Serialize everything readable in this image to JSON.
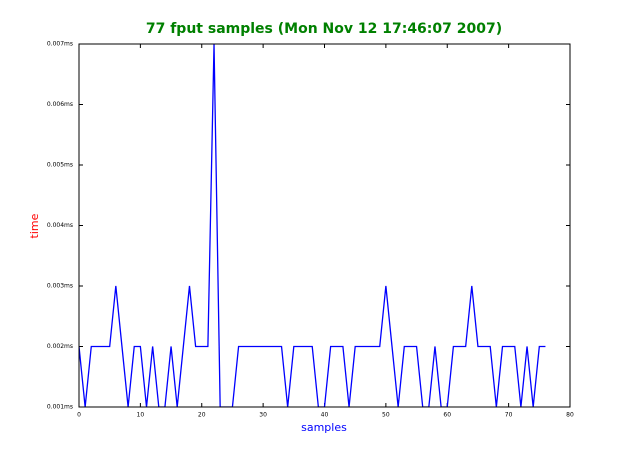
{
  "chart_data": {
    "type": "line",
    "title": "77 fput samples (Mon Nov 12 17:46:07 2007)",
    "x_label": "samples",
    "y_label": "time",
    "x": [
      0,
      1,
      2,
      3,
      4,
      5,
      6,
      7,
      8,
      9,
      10,
      11,
      12,
      13,
      14,
      15,
      16,
      17,
      18,
      19,
      20,
      21,
      22,
      23,
      24,
      25,
      26,
      27,
      28,
      29,
      30,
      31,
      32,
      33,
      34,
      35,
      36,
      37,
      38,
      39,
      40,
      41,
      42,
      43,
      44,
      45,
      46,
      47,
      48,
      49,
      50,
      51,
      52,
      53,
      54,
      55,
      56,
      57,
      58,
      59,
      60,
      61,
      62,
      63,
      64,
      65,
      66,
      67,
      68,
      69,
      70,
      71,
      72,
      73,
      74,
      75,
      76
    ],
    "series": [
      {
        "color": "#0000ff",
        "values": [
          0.002,
          0.001,
          0.002,
          0.002,
          0.002,
          0.002,
          0.003,
          0.002,
          0.001,
          0.002,
          0.002,
          0.001,
          0.002,
          0.001,
          0.001,
          0.002,
          0.001,
          0.002,
          0.003,
          0.002,
          0.002,
          0.002,
          0.007,
          0.001,
          0.001,
          0.001,
          0.002,
          0.002,
          0.002,
          0.002,
          0.002,
          0.002,
          0.002,
          0.002,
          0.001,
          0.002,
          0.002,
          0.002,
          0.002,
          0.001,
          0.001,
          0.002,
          0.002,
          0.002,
          0.001,
          0.002,
          0.002,
          0.002,
          0.002,
          0.002,
          0.003,
          0.002,
          0.001,
          0.002,
          0.002,
          0.002,
          0.001,
          0.001,
          0.002,
          0.001,
          0.001,
          0.002,
          0.002,
          0.002,
          0.003,
          0.002,
          0.002,
          0.002,
          0.001,
          0.002,
          0.002,
          0.002,
          0.001,
          0.002,
          0.001,
          0.002,
          0.002
        ]
      }
    ],
    "xlim": [
      0,
      80
    ],
    "xticks": [
      0,
      10,
      20,
      30,
      40,
      50,
      60,
      70,
      80
    ],
    "ylim": [
      0.001,
      0.007
    ],
    "yticks": [
      {
        "value": 0.001,
        "label": "0.001ms"
      },
      {
        "value": 0.002,
        "label": "0.002ms"
      },
      {
        "value": 0.003,
        "label": "0.003ms"
      },
      {
        "value": 0.004,
        "label": "0.004ms"
      },
      {
        "value": 0.005,
        "label": "0.005ms"
      },
      {
        "value": 0.006,
        "label": "0.006ms"
      },
      {
        "value": 0.007,
        "label": "0.007ms"
      }
    ],
    "title_color": "#008000",
    "x_label_color": "#0000ff",
    "y_label_color": "#ff0000",
    "grid": false
  }
}
